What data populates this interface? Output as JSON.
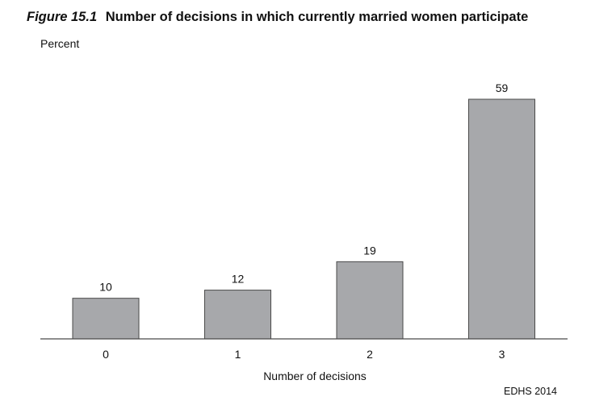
{
  "chart_data": {
    "type": "bar",
    "figure_label": "Figure 15.1",
    "title": "Number of decisions in which currently married women participate",
    "ylabel": "Percent",
    "xlabel": "Number of decisions",
    "categories": [
      "0",
      "1",
      "2",
      "3"
    ],
    "values": [
      10,
      12,
      19,
      59
    ],
    "ylim": [
      0,
      59
    ],
    "grid": false,
    "bar_color": "#a7a8ab",
    "source": "EDHS 2014"
  }
}
